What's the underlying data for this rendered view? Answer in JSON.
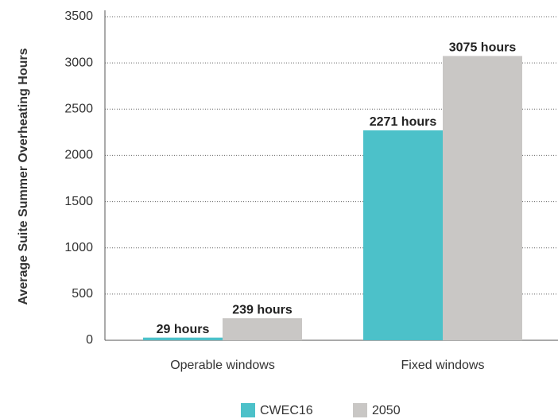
{
  "chart_data": {
    "type": "bar",
    "y_label": "Average Suite Summer Overheating Hours",
    "categories": [
      "Operable windows",
      "Fixed windows"
    ],
    "series": [
      {
        "name": "CWEC16",
        "color": "#4cc1c9",
        "values": [
          29,
          2271
        ],
        "value_labels": [
          "29 hours",
          "2271 hours"
        ]
      },
      {
        "name": "2050",
        "color": "#c9c7c5",
        "values": [
          239,
          3075
        ],
        "value_labels": [
          "239 hours",
          "3075 hours"
        ]
      }
    ],
    "ylim": [
      0,
      3500
    ],
    "yticks": [
      0,
      500,
      1000,
      1500,
      2000,
      2500,
      3000,
      3500
    ],
    "grid": true,
    "legend": "bottom"
  }
}
